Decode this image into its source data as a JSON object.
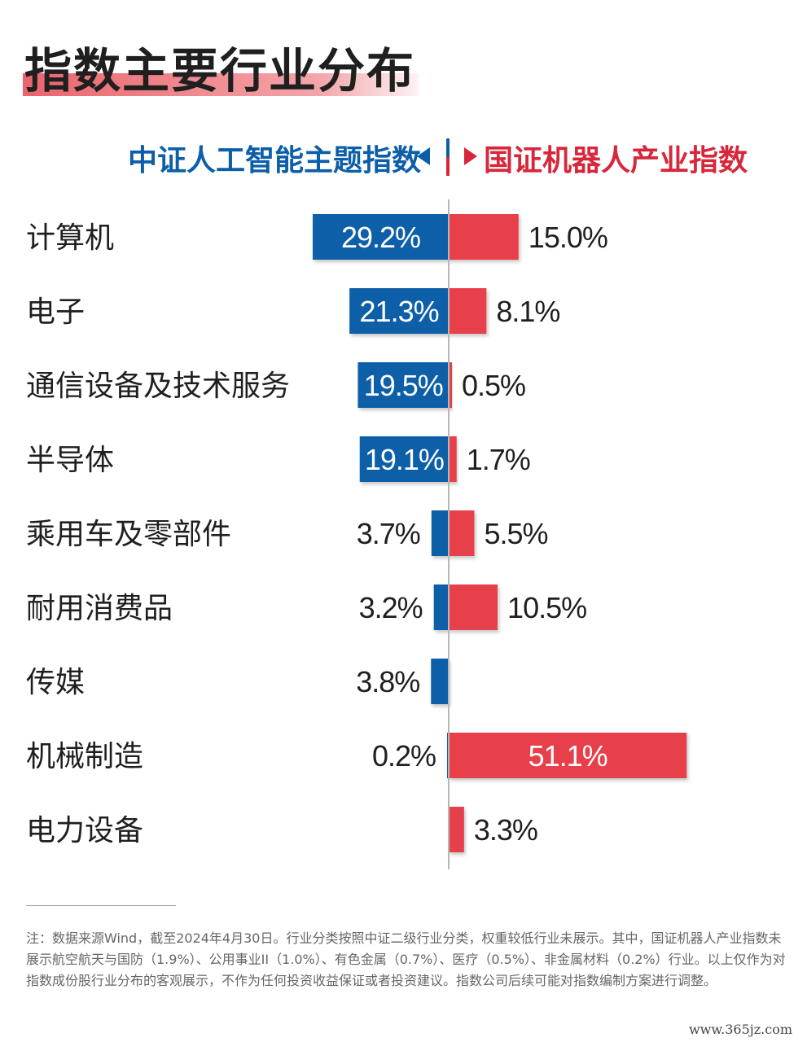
{
  "title": "指数主要行业分布",
  "legend": {
    "left": "中证人工智能主题指数",
    "right": "国证机器人产业指数"
  },
  "colors": {
    "left_series": "#0c5ea8",
    "right_series": "#e8414c",
    "title_highlight": "#e95c65"
  },
  "chart_data": {
    "type": "bar",
    "orientation": "horizontal-diverging",
    "categories": [
      "计算机",
      "电子",
      "通信设备及技术服务",
      "半导体",
      "乘用车及零部件",
      "耐用消费品",
      "传媒",
      "机械制造",
      "电力设备"
    ],
    "series": [
      {
        "name": "中证人工智能主题指数",
        "values": [
          29.2,
          21.3,
          19.5,
          19.1,
          3.7,
          3.2,
          3.8,
          0.2,
          null
        ],
        "labels": [
          "29.2%",
          "21.3%",
          "19.5%",
          "19.1%",
          "3.7%",
          "3.2%",
          "3.8%",
          "0.2%",
          ""
        ]
      },
      {
        "name": "国证机器人产业指数",
        "values": [
          15.0,
          8.1,
          0.5,
          1.7,
          5.5,
          10.5,
          null,
          51.1,
          3.3
        ],
        "labels": [
          "15.0%",
          "8.1%",
          "0.5%",
          "1.7%",
          "5.5%",
          "10.5%",
          "",
          "51.1%",
          "3.3%"
        ]
      }
    ],
    "unit": "%"
  },
  "note": "注：数据来源Wind，截至2024年4月30日。行业分类按照中证二级行业分类，权重较低行业未展示。其中，国证机器人产业指数未展示航空航天与国防（1.9%）、公用事业II（1.0%）、有色金属（0.7%）、医疗（0.5%）、非金属材料（0.2%）行业。以上仅作为对指数成份股行业分布的客观展示，不作为任何投资收益保证或者投资建议。指数公司后续可能对指数编制方案进行调整。",
  "watermark": "www.365jz.com"
}
